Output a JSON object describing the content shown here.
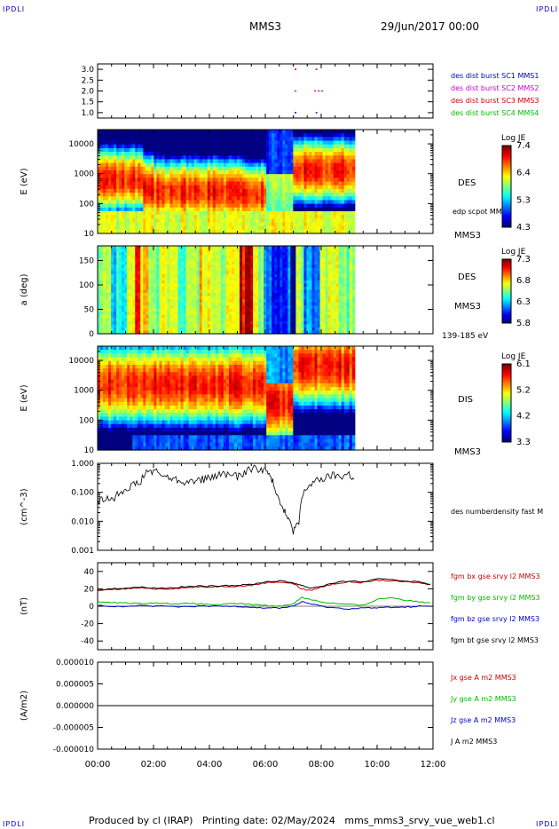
{
  "header": {
    "corner_tl": "IPDLI",
    "corner_tr": "IPDLI",
    "corner_bl": "IPDLI",
    "corner_br": "IPDLI",
    "title": "MMS3",
    "date": "29/Jun/2017 00:00"
  },
  "footer": {
    "text": "Produced by cl (IRAP)   Printing date: 02/May/2024   mms_mms3_srvy_vue_web1.cl"
  },
  "time_axis": {
    "ticks": [
      "00:00",
      "02:00",
      "04:00",
      "06:00",
      "08:00",
      "10:00",
      "12:00"
    ],
    "range_hours": [
      0,
      12
    ]
  },
  "chart_data": [
    {
      "type": "scatter",
      "panel": "burst",
      "yticks": [
        "3.0",
        "2.5",
        "2.0",
        "1.5",
        "1.0"
      ],
      "ylim": [
        0.75,
        3.25
      ],
      "legend": [
        {
          "name": "des dist burst SC1 MMS1",
          "color": "#0000cc"
        },
        {
          "name": "des dist burst SC2 MMS2",
          "color": "#cc00cc"
        },
        {
          "name": "des dist burst SC3 MMS3",
          "color": "#cc0000"
        },
        {
          "name": "des dist burst SC4 MMS4",
          "color": "#00bb00"
        }
      ],
      "segments": [
        {
          "t": [
            7.05,
            7.12
          ],
          "y": 1.0,
          "color": "#0000cc"
        },
        {
          "t": [
            7.8,
            7.86
          ],
          "y": 1.0,
          "color": "#0000cc"
        },
        {
          "t": [
            7.05,
            7.12
          ],
          "y": 2.0,
          "color": "#cc00cc"
        },
        {
          "t": [
            7.75,
            8.1
          ],
          "y": 2.0,
          "color": "#cc00cc"
        },
        {
          "t": [
            7.05,
            7.12
          ],
          "y": 3.0,
          "color": "#cc0000"
        },
        {
          "t": [
            7.8,
            7.9
          ],
          "y": 3.0,
          "color": "#cc0000"
        }
      ]
    },
    {
      "type": "heatmap",
      "panel": "des-energy",
      "ylabel": "E (eV)",
      "yticks": [
        "10000",
        "1000",
        "100",
        "10"
      ],
      "ylim": [
        10,
        30000
      ],
      "scale": "log",
      "tmax": 9.2,
      "instrument": "DES",
      "spacecraft": "MMS3",
      "overlay_label": "edp scpot MMS3",
      "colorbar": {
        "title": "Log JE",
        "ticks": [
          "7.4",
          "6.4",
          "5.3",
          "4.3"
        ]
      },
      "bands": [
        {
          "t": [
            0.0,
            1.6
          ],
          "peak_logE": 2.8
        },
        {
          "t": [
            1.6,
            2.0
          ],
          "peak_logE": 2.5
        },
        {
          "t": [
            2.0,
            5.2
          ],
          "peak_logE": 2.4
        },
        {
          "t": [
            5.2,
            6.0
          ],
          "peak_logE": 2.3
        },
        {
          "t": [
            6.0,
            7.0
          ],
          "peak_logE": 3.7
        },
        {
          "t": [
            7.0,
            9.2
          ],
          "peak_logE": 3.1
        }
      ]
    },
    {
      "type": "heatmap",
      "panel": "des-pitch",
      "ylabel": "a (deg)",
      "yticks": [
        "150",
        "100",
        "50",
        "0"
      ],
      "ylim": [
        0,
        180
      ],
      "tmax": 9.2,
      "instrument": "DES",
      "spacecraft": "MMS3",
      "energy_range": "139-185 eV",
      "colorbar": {
        "title": "Log JE",
        "ticks": [
          "7.3",
          "6.8",
          "6.3",
          "5.8"
        ]
      }
    },
    {
      "type": "heatmap",
      "panel": "dis-energy",
      "ylabel": "E (eV)",
      "yticks": [
        "10000",
        "1000",
        "100",
        "10"
      ],
      "ylim": [
        10,
        30000
      ],
      "scale": "log",
      "tmax": 9.2,
      "instrument": "DIS",
      "spacecraft": "MMS3",
      "colorbar": {
        "title": "Log JE",
        "ticks": [
          "6.1",
          "5.2",
          "4.2",
          "3.3"
        ]
      }
    },
    {
      "type": "line",
      "panel": "density",
      "ylabel": "(cm^-3)",
      "yticks": [
        "1.000",
        "0.100",
        "0.010",
        "0.001"
      ],
      "ylim": [
        0.001,
        1.0
      ],
      "scale": "log",
      "series": [
        {
          "name": "des numberdensity fast M",
          "color": "#000000",
          "x": [
            0,
            0.3,
            0.6,
            0.9,
            1.2,
            1.5,
            1.8,
            2.1,
            2.4,
            2.7,
            3.0,
            3.3,
            3.6,
            3.9,
            4.2,
            4.5,
            4.8,
            5.1,
            5.4,
            5.7,
            6.0,
            6.2,
            6.4,
            6.6,
            6.8,
            7.0,
            7.2,
            7.5,
            7.8,
            8.1,
            8.4,
            8.7,
            9.0,
            9.2
          ],
          "y": [
            0.05,
            0.06,
            0.07,
            0.12,
            0.18,
            0.2,
            0.55,
            0.5,
            0.35,
            0.3,
            0.25,
            0.22,
            0.28,
            0.3,
            0.35,
            0.45,
            0.4,
            0.35,
            0.65,
            0.7,
            0.6,
            0.3,
            0.1,
            0.03,
            0.012,
            0.005,
            0.008,
            0.15,
            0.25,
            0.3,
            0.4,
            0.35,
            0.45,
            0.2
          ]
        }
      ]
    },
    {
      "type": "line",
      "panel": "fgm",
      "ylabel": "(nT)",
      "yticks": [
        "40",
        "20",
        "0",
        "-20",
        "-40"
      ],
      "ylim": [
        -50,
        50
      ],
      "x": [
        0,
        0.5,
        1,
        1.5,
        2,
        2.5,
        3,
        3.5,
        4,
        4.5,
        5,
        5.5,
        6,
        6.5,
        7,
        7.3,
        7.6,
        8,
        8.5,
        9,
        9.5,
        10,
        10.5,
        11,
        11.5,
        12
      ],
      "series": [
        {
          "name": "fgm bx gse srvy l2 MMS3",
          "color": "#cc0000",
          "values": [
            18,
            19,
            20,
            21,
            20,
            20,
            21,
            22,
            22,
            23,
            23,
            24,
            27,
            28,
            26,
            20,
            18,
            22,
            26,
            28,
            27,
            30,
            29,
            28,
            27,
            24
          ]
        },
        {
          "name": "fgm by gse srvy l2 MMS3",
          "color": "#00bb00",
          "values": [
            5,
            4,
            4,
            3,
            4,
            3,
            3,
            3,
            2,
            2,
            3,
            2,
            1,
            0,
            3,
            10,
            8,
            5,
            3,
            2,
            1,
            8,
            10,
            7,
            5,
            4
          ]
        },
        {
          "name": "fgm bz gse srvy l2 MMS3",
          "color": "#0000cc",
          "values": [
            1,
            0,
            0,
            1,
            0,
            0,
            -1,
            0,
            0,
            0,
            0,
            -1,
            -2,
            -2,
            0,
            5,
            3,
            0,
            -2,
            -3,
            -2,
            -2,
            -1,
            -1,
            0,
            0
          ]
        },
        {
          "name": "fgm bt gse srvy l2 MMS3",
          "color": "#000000",
          "values": [
            19,
            20,
            21,
            22,
            21,
            21,
            22,
            23,
            23,
            24,
            24,
            25,
            28,
            29,
            27,
            24,
            21,
            23,
            27,
            29,
            28,
            31,
            31,
            29,
            28,
            25
          ]
        }
      ]
    },
    {
      "type": "line",
      "panel": "current",
      "ylabel": "(A/m2)",
      "yticks": [
        "0.000010",
        "0.000005",
        "0.000000",
        "-0.000005",
        "-0.000010"
      ],
      "ylim": [
        -1e-05,
        1e-05
      ],
      "series": [
        {
          "name": "Jx gse A m2 MMS3",
          "color": "#cc0000"
        },
        {
          "name": "Jy gse A m2 MMS3",
          "color": "#00bb00"
        },
        {
          "name": "Jz gse A m2 MMS3",
          "color": "#0000cc"
        },
        {
          "name": "J A m2 MMS3",
          "color": "#000000"
        }
      ]
    }
  ]
}
